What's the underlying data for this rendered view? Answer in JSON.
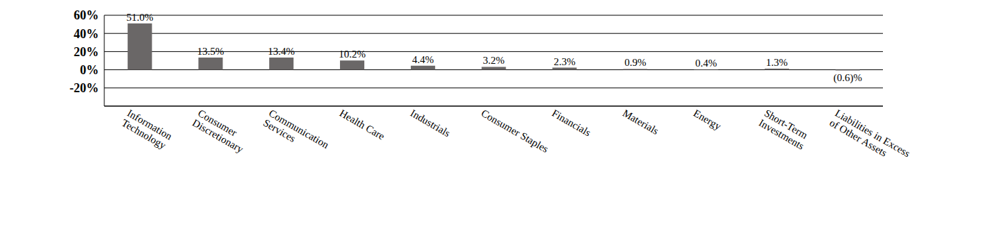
{
  "chart_data": {
    "type": "bar",
    "categories": [
      "Information Technology",
      "Consumer Discretionary",
      "Communication Services",
      "Health Care",
      "Industrials",
      "Consumer Staples",
      "Financials",
      "Materials",
      "Energy",
      "Short-Term Investments",
      "Liabilities in Excess of Other Assets"
    ],
    "values": [
      51.0,
      13.5,
      13.4,
      10.2,
      4.4,
      3.2,
      2.3,
      0.9,
      0.4,
      1.3,
      -0.6
    ],
    "value_labels": [
      "51.0%",
      "13.5%",
      "13.4%",
      "10.2%",
      "4.4%",
      "3.2%",
      "2.3%",
      "0.9%",
      "0.4%",
      "1.3%",
      "(0.6)%"
    ],
    "color": "#6a6767",
    "ylim": [
      -40,
      60
    ],
    "yticks": [
      {
        "value": -20,
        "label": "-20%"
      },
      {
        "value": 0,
        "label": "0%"
      },
      {
        "value": 20,
        "label": "20%"
      },
      {
        "value": 40,
        "label": "40%"
      },
      {
        "value": 60,
        "label": "60%"
      }
    ],
    "grid": true,
    "data_labels": true
  }
}
